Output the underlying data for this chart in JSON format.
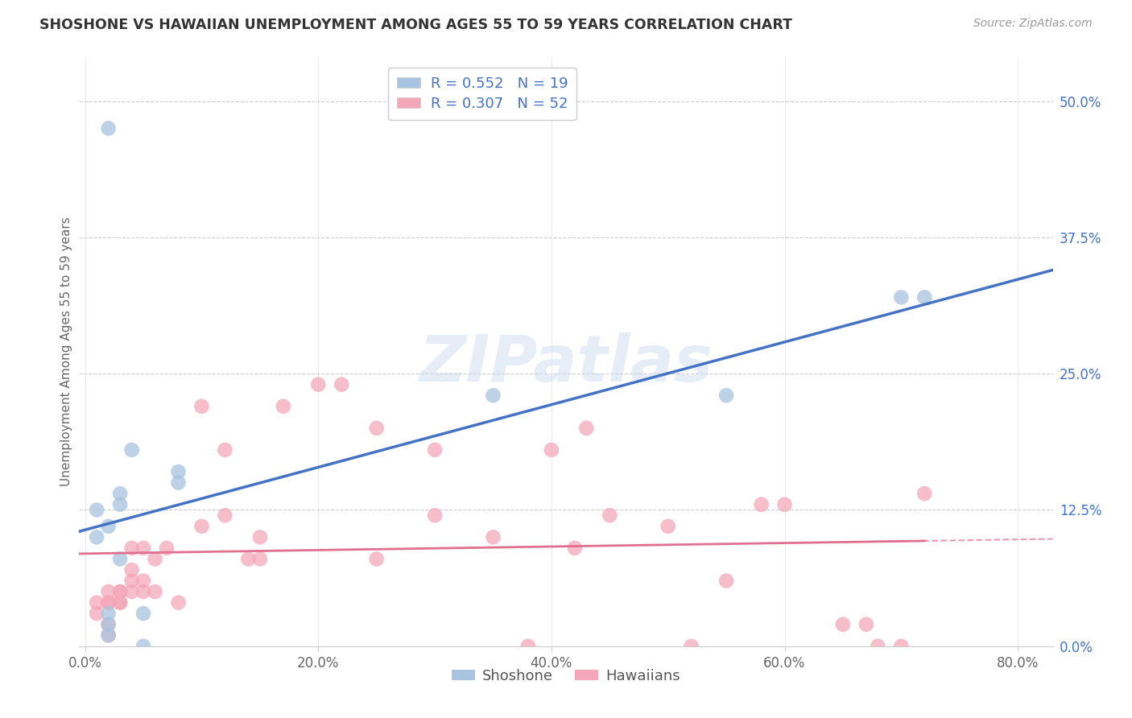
{
  "title": "SHOSHONE VS HAWAIIAN UNEMPLOYMENT AMONG AGES 55 TO 59 YEARS CORRELATION CHART",
  "source": "Source: ZipAtlas.com",
  "xlabel_ticks": [
    "0.0%",
    "20.0%",
    "40.0%",
    "60.0%",
    "80.0%"
  ],
  "xlabel_tick_vals": [
    0.0,
    0.2,
    0.4,
    0.6,
    0.8
  ],
  "ylabel_ticks": [
    "0.0%",
    "12.5%",
    "25.0%",
    "37.5%",
    "50.0%"
  ],
  "ylabel_tick_vals": [
    0.0,
    0.125,
    0.25,
    0.375,
    0.5
  ],
  "ylabel": "Unemployment Among Ages 55 to 59 years",
  "shoshone_color": "#a8c4e0",
  "hawaiian_color": "#f4a7b9",
  "shoshone_line_color": "#4472c4",
  "hawaiian_line_color": "#e07090",
  "legend_text_color": "#4472c4",
  "R_shoshone": 0.552,
  "N_shoshone": 19,
  "R_hawaiian": 0.307,
  "N_hawaiian": 52,
  "watermark": "ZIPatlas",
  "shoshone_x": [
    0.01,
    0.01,
    0.02,
    0.02,
    0.02,
    0.02,
    0.03,
    0.03,
    0.03,
    0.04,
    0.05,
    0.05,
    0.08,
    0.08,
    0.35,
    0.55,
    0.7,
    0.72,
    0.02
  ],
  "shoshone_y": [
    0.125,
    0.1,
    0.11,
    0.02,
    0.03,
    0.01,
    0.08,
    0.13,
    0.14,
    0.18,
    0.0,
    0.03,
    0.15,
    0.16,
    0.23,
    0.23,
    0.32,
    0.32,
    0.475
  ],
  "hawaiian_x": [
    0.01,
    0.01,
    0.02,
    0.02,
    0.02,
    0.02,
    0.02,
    0.03,
    0.03,
    0.03,
    0.03,
    0.04,
    0.04,
    0.04,
    0.04,
    0.05,
    0.05,
    0.05,
    0.06,
    0.06,
    0.07,
    0.08,
    0.1,
    0.1,
    0.12,
    0.12,
    0.14,
    0.15,
    0.15,
    0.17,
    0.2,
    0.22,
    0.25,
    0.25,
    0.3,
    0.3,
    0.35,
    0.38,
    0.4,
    0.42,
    0.43,
    0.45,
    0.5,
    0.52,
    0.55,
    0.58,
    0.6,
    0.65,
    0.67,
    0.68,
    0.7,
    0.72
  ],
  "hawaiian_y": [
    0.04,
    0.03,
    0.04,
    0.04,
    0.05,
    0.02,
    0.01,
    0.04,
    0.05,
    0.05,
    0.04,
    0.05,
    0.06,
    0.07,
    0.09,
    0.05,
    0.06,
    0.09,
    0.05,
    0.08,
    0.09,
    0.04,
    0.11,
    0.22,
    0.12,
    0.18,
    0.08,
    0.08,
    0.1,
    0.22,
    0.24,
    0.24,
    0.2,
    0.08,
    0.12,
    0.18,
    0.1,
    0.0,
    0.18,
    0.09,
    0.2,
    0.12,
    0.11,
    0.0,
    0.06,
    0.13,
    0.13,
    0.02,
    0.02,
    0.0,
    0.0,
    0.14
  ],
  "ylim_min": 0.0,
  "ylim_max": 0.54,
  "xlim_min": -0.005,
  "xlim_max": 0.83
}
